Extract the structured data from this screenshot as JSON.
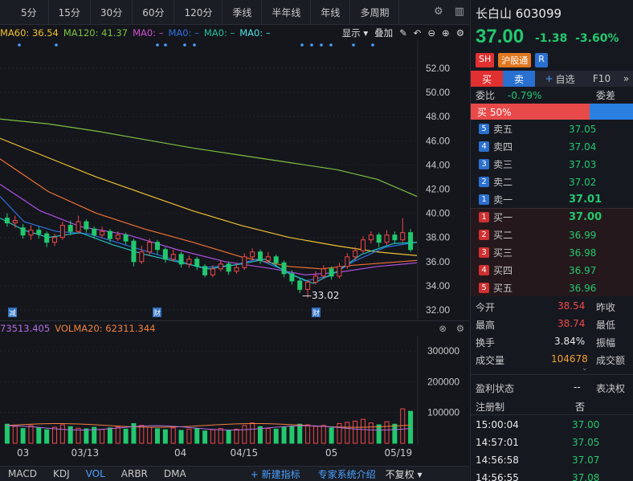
{
  "toolbar": {
    "periods": [
      "5分",
      "15分",
      "30分",
      "60分",
      "120分",
      "季线",
      "半年线",
      "年线",
      "多周期"
    ]
  },
  "ma_legend": {
    "ma60": "MA60: 36.54",
    "ma120": "MA120: 41.37",
    "ma0a": "MA0: –",
    "ma0b": "MA0: –",
    "ma0c": "MA0: –",
    "ma0d": "MA0: –",
    "display_label": "显示",
    "overlay_label": "叠加"
  },
  "price_axis": [
    "52.00",
    "50.00",
    "48.00",
    "46.00",
    "44.00",
    "42.00",
    "40.00",
    "38.00",
    "36.00",
    "34.00",
    "32.00"
  ],
  "low_marker": "33.02",
  "event_markers": [
    "减",
    "财",
    "财"
  ],
  "vol_legend": {
    "volma_a": "73513.405",
    "volma20": "VOLMA20: 62311.344"
  },
  "vol_axis": [
    "300000",
    "200000",
    "100000"
  ],
  "date_axis": [
    "03",
    "03/13",
    "04",
    "04/15",
    "05",
    "05/19"
  ],
  "bottom": {
    "indicators": [
      "MACD",
      "KDJ",
      "VOL",
      "ARBR",
      "DMA"
    ],
    "active_indicator": "VOL",
    "new_indicator": "新建指标",
    "expert": "专家系统介绍",
    "adjust": "不复权"
  },
  "quote": {
    "name": "长白山",
    "code": "603099",
    "price": "37.00",
    "change": "-1.38",
    "change_pct": "-3.60%",
    "tags": [
      "SH",
      "沪股通",
      "R"
    ],
    "tabs": [
      "买",
      "卖",
      "自选",
      "F10"
    ],
    "weibi_label": "委比",
    "weibi_value": "-0.79%",
    "weicha_label": "委差",
    "buy_ratio": "买 50%",
    "asks": [
      {
        "level": "5",
        "name": "卖五",
        "price": "37.05"
      },
      {
        "level": "4",
        "name": "卖四",
        "price": "37.04"
      },
      {
        "level": "3",
        "name": "卖三",
        "price": "37.03"
      },
      {
        "level": "2",
        "name": "卖二",
        "price": "37.02"
      },
      {
        "level": "1",
        "name": "卖一",
        "price": "37.01"
      }
    ],
    "bids": [
      {
        "level": "1",
        "name": "买一",
        "price": "37.00"
      },
      {
        "level": "2",
        "name": "买二",
        "price": "36.99"
      },
      {
        "level": "3",
        "name": "买三",
        "price": "36.98"
      },
      {
        "level": "4",
        "name": "买四",
        "price": "36.97"
      },
      {
        "level": "5",
        "name": "买五",
        "price": "36.96"
      }
    ],
    "stats": {
      "open_label": "今开",
      "open": "38.54",
      "prev_label": "昨收",
      "high_label": "最高",
      "high": "38.74",
      "low_label": "最低",
      "turnover_label": "换手",
      "turnover": "3.84%",
      "amp_label": "振幅",
      "volume_label": "成交量",
      "volume": "104678",
      "amount_label": "成交额"
    },
    "profit_label": "盈利状态",
    "profit_value": "--",
    "vote_label": "表决权",
    "reg_label": "注册制",
    "reg_value": "否",
    "trades": [
      {
        "time": "15:00:04",
        "price": "37.00"
      },
      {
        "time": "14:57:01",
        "price": "37.05"
      },
      {
        "time": "14:56:58",
        "price": "37.07"
      },
      {
        "time": "14:56:55",
        "price": "37.08"
      }
    ]
  },
  "colors": {
    "up": "#f04848",
    "down": "#22c86e",
    "ma60": "#f0c030",
    "ma120": "#7cc040"
  }
}
